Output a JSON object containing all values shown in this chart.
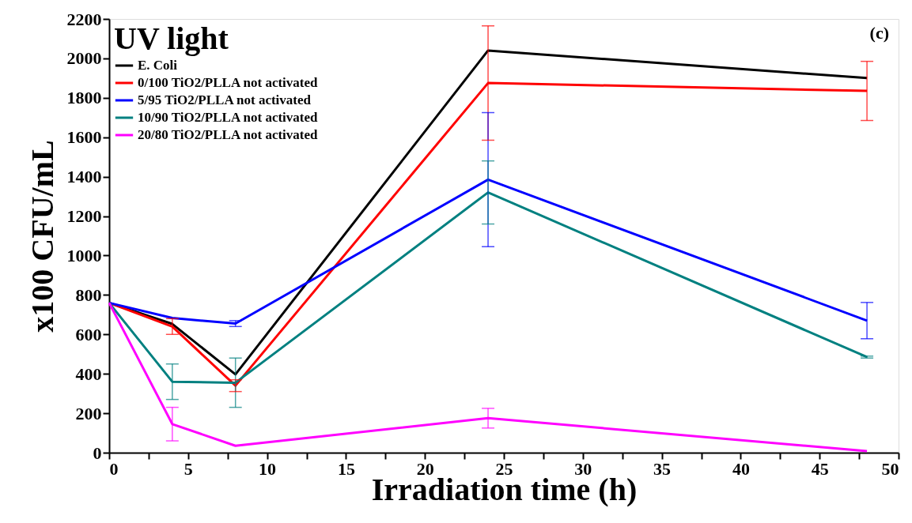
{
  "chart_data": {
    "type": "line",
    "xlabel": "Irradiation time (h)",
    "ylabel": "x100 CFU/mL",
    "legend_title": "UV light",
    "annotations": [
      "(c)"
    ],
    "x": [
      0,
      4,
      8,
      24,
      48
    ],
    "xlim": [
      0,
      50
    ],
    "ylim": [
      0,
      2200
    ],
    "xticks": [
      0,
      {
        "value": 2.5,
        "label": null
      },
      5,
      {
        "value": 7.5,
        "label": null
      },
      10,
      {
        "value": 12.5,
        "label": null
      },
      15,
      {
        "value": 17.5,
        "label": null
      },
      20,
      {
        "value": 22.5,
        "label": null
      },
      25,
      {
        "value": 27.5,
        "label": null
      },
      30,
      {
        "value": 32.5,
        "label": null
      },
      35,
      {
        "value": 37.5,
        "label": null
      },
      40,
      {
        "value": 42.5,
        "label": null
      },
      45,
      {
        "value": 47.5,
        "label": null
      },
      50
    ],
    "yticks": [
      0,
      200,
      400,
      600,
      800,
      1000,
      1200,
      1400,
      1600,
      1800,
      2000,
      2200
    ],
    "grid": false,
    "legend": "top left",
    "marker": "none",
    "line_style": "solid",
    "series": [
      {
        "name": "E. Coli",
        "color": "#000000",
        "values": [
          760,
          653,
          397,
          2040,
          1900
        ]
      },
      {
        "name": "0/100 TiO2/PLLA  not activated",
        "color": "#ff0000",
        "values": [
          760,
          640,
          340,
          1875,
          1835
        ],
        "errors": [
          null,
          40,
          30,
          290,
          150
        ]
      },
      {
        "name": "5/95 TiO2/PLLA not activated",
        "color": "#0000ff",
        "values": [
          760,
          683,
          655,
          1385,
          670
        ],
        "errors": [
          null,
          null,
          15,
          340,
          92
        ]
      },
      {
        "name": "10/90 TiO2/PLLA not activated",
        "color": "#008080",
        "values": [
          760,
          360,
          355,
          1320,
          485
        ],
        "errors": [
          null,
          90,
          125,
          160,
          5
        ]
      },
      {
        "name": "20/80 TiO2/PLLA not activated",
        "color": "#ff00ff",
        "values": [
          760,
          145,
          35,
          175,
          8
        ],
        "errors": [
          null,
          85,
          null,
          50,
          null
        ]
      }
    ]
  }
}
